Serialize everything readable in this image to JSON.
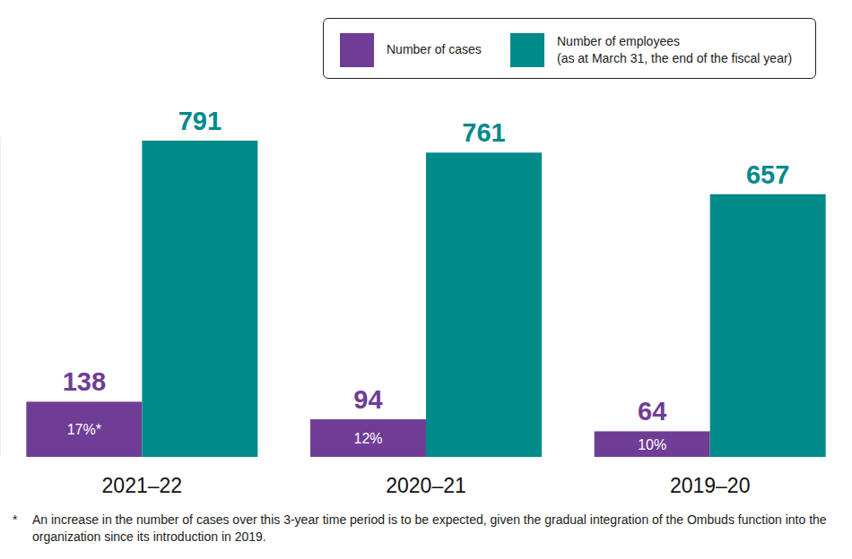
{
  "chart_data": {
    "type": "bar",
    "categories": [
      "2021–22",
      "2020–21",
      "2019–20"
    ],
    "series": [
      {
        "name": "Number of cases",
        "color": "#6f3d96",
        "values": [
          138,
          94,
          64
        ],
        "share_labels": [
          "17%*",
          "12%",
          "10%"
        ]
      },
      {
        "name": "Number of employees\n(as at March 31, the end of the fiscal year)",
        "color": "#008a8a",
        "values": [
          791,
          761,
          657
        ]
      }
    ],
    "ylim": [
      0,
      800
    ],
    "grid": false,
    "legend": "top-right",
    "data_labels": true,
    "tick_labels": "x",
    "footnote": {
      "marker": "*",
      "text": "An increase in the number of cases over this 3-year time period is to be expected, given the gradual integration of the Ombuds function into the organization since its introduction in 2019."
    }
  }
}
